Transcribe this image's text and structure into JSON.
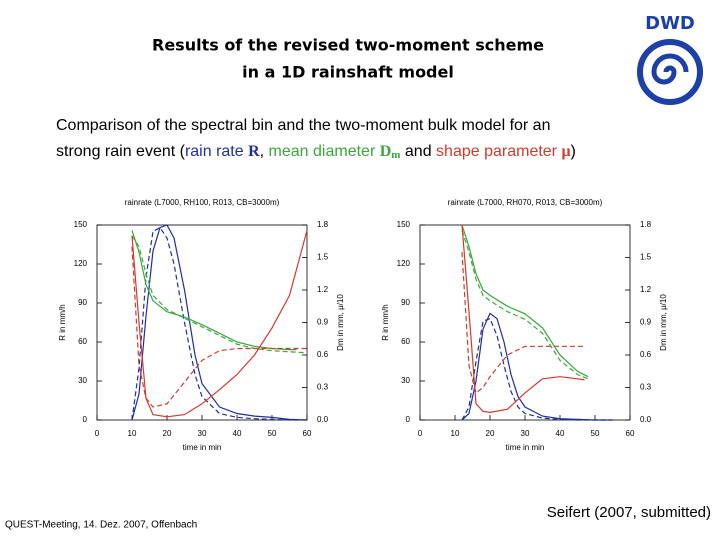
{
  "title_lines": [
    "Results of the revised two-moment scheme",
    "in a 1D rainshaft model"
  ],
  "logo_text": "DWD",
  "description": {
    "line1": "Comparison of the spectral bin and the two-moment bulk model for an",
    "parts": [
      "strong rain event (",
      "rain rate ",
      "R",
      ", ",
      "mean diameter ",
      "D",
      "m",
      " and ",
      "shape parameter ",
      "μ",
      ")"
    ]
  },
  "footer": "QUEST-Meeting, 14. Dez. 2007, Offenbach",
  "credit": "Seifert (2007, submitted)",
  "chart_data": [
    {
      "type": "line",
      "title": "rainrate (L7000, RH100, R013, CB=3000m)",
      "x_label": "time in min",
      "y_label": "R in mm/h",
      "y2_label": "Dm in mm, μ/10",
      "xlim": [
        0,
        60
      ],
      "xticks": [
        0,
        10,
        20,
        30,
        40,
        50,
        60
      ],
      "ylim": [
        0,
        150
      ],
      "yticks": [
        0,
        30,
        60,
        90,
        120,
        150
      ],
      "y2lim": [
        0,
        1.8
      ],
      "y2ticks": [
        {
          "value": 0,
          "label": "0.0"
        },
        0.3,
        0.6,
        0.9,
        1.2,
        1.5,
        1.8
      ],
      "series": [
        {
          "color": "#1f2fa0",
          "dashed": false,
          "x": [
            10,
            12,
            14,
            16,
            18,
            20,
            22,
            25,
            28,
            30,
            35,
            40,
            45,
            50,
            55,
            60
          ],
          "values": [
            0,
            20,
            80,
            130,
            148,
            150,
            140,
            100,
            50,
            28,
            10,
            5,
            3,
            2,
            0.5,
            0
          ]
        },
        {
          "color": "#1f2fa0",
          "dashed": true,
          "x": [
            10,
            12,
            14,
            16,
            18,
            20,
            22,
            25,
            28,
            30,
            35,
            40,
            45,
            50,
            55,
            60
          ],
          "values": [
            0,
            40,
            110,
            145,
            148,
            140,
            120,
            75,
            35,
            18,
            5,
            2,
            1,
            0.5,
            0,
            0
          ]
        },
        {
          "color": "#3aa83a",
          "dashed": false,
          "axis": "y2",
          "x": [
            10,
            12,
            14,
            16,
            20,
            25,
            30,
            35,
            40,
            45,
            50,
            55,
            57
          ],
          "values": [
            1.75,
            1.55,
            1.25,
            1.1,
            1.0,
            0.95,
            0.88,
            0.8,
            0.72,
            0.68,
            0.66,
            0.65,
            0.65
          ]
        },
        {
          "color": "#3aa83a",
          "dashed": true,
          "axis": "y2",
          "x": [
            10,
            12,
            14,
            16,
            20,
            25,
            30,
            35,
            40,
            45,
            50,
            55,
            60
          ],
          "values": [
            1.7,
            1.6,
            1.35,
            1.15,
            1.02,
            0.94,
            0.86,
            0.78,
            0.7,
            0.66,
            0.64,
            0.63,
            0.62
          ]
        },
        {
          "color": "#d43a2a",
          "dashed": false,
          "axis": "y2",
          "x": [
            10,
            12,
            14,
            16,
            20,
            25,
            30,
            35,
            40,
            45,
            50,
            55,
            60
          ],
          "values": [
            1.7,
            0.9,
            0.2,
            0.05,
            0.03,
            0.05,
            0.15,
            0.28,
            0.42,
            0.6,
            0.85,
            1.15,
            1.75
          ]
        },
        {
          "color": "#d43a2a",
          "dashed": true,
          "axis": "y2",
          "x": [
            10,
            12,
            14,
            16,
            20,
            25,
            30,
            35,
            40,
            45,
            50,
            55,
            60
          ],
          "values": [
            1.6,
            0.5,
            0.2,
            0.12,
            0.15,
            0.35,
            0.55,
            0.64,
            0.66,
            0.66,
            0.66,
            0.66,
            0.66
          ]
        }
      ]
    },
    {
      "type": "line",
      "title": "rainrate (L7000, RH070, R013, CB=3000m)",
      "x_label": "time in min",
      "y_label": "R in mm/h",
      "y2_label": "Dm in mm, μ/10",
      "xlim": [
        0,
        60
      ],
      "xticks": [
        0,
        10,
        20,
        30,
        40,
        50,
        60
      ],
      "ylim": [
        0,
        150
      ],
      "yticks": [
        0,
        30,
        60,
        90,
        120,
        150
      ],
      "y2lim": [
        0,
        1.8
      ],
      "y2ticks": [
        {
          "value": 0,
          "label": "0.0"
        },
        0.3,
        0.6,
        0.9,
        1.2,
        1.5,
        1.8
      ],
      "series": [
        {
          "color": "#1f2fa0",
          "dashed": false,
          "x": [
            12,
            14,
            16,
            18,
            20,
            22,
            24,
            26,
            28,
            30,
            35,
            40,
            45,
            50,
            55
          ],
          "values": [
            0,
            5,
            30,
            70,
            82,
            78,
            60,
            35,
            18,
            10,
            3,
            1,
            0.5,
            0,
            0
          ]
        },
        {
          "color": "#1f2fa0",
          "dashed": true,
          "x": [
            12,
            14,
            16,
            18,
            20,
            22,
            24,
            26,
            28,
            30,
            35,
            40,
            45,
            50,
            55
          ],
          "values": [
            0,
            10,
            45,
            76,
            78,
            65,
            42,
            22,
            10,
            5,
            1.5,
            0.5,
            0,
            0,
            0
          ]
        },
        {
          "color": "#3aa83a",
          "dashed": false,
          "axis": "y2",
          "x": [
            12,
            14,
            16,
            18,
            20,
            25,
            30,
            35,
            40,
            45,
            48
          ],
          "values": [
            1.8,
            1.6,
            1.35,
            1.2,
            1.15,
            1.05,
            0.98,
            0.85,
            0.6,
            0.45,
            0.4
          ]
        },
        {
          "color": "#3aa83a",
          "dashed": true,
          "axis": "y2",
          "x": [
            12,
            14,
            16,
            18,
            20,
            25,
            30,
            35,
            40,
            45,
            48
          ],
          "values": [
            1.75,
            1.55,
            1.3,
            1.15,
            1.1,
            1.0,
            0.93,
            0.8,
            0.55,
            0.42,
            0.38
          ]
        },
        {
          "color": "#d43a2a",
          "dashed": false,
          "axis": "y2",
          "x": [
            12,
            14,
            16,
            18,
            20,
            25,
            30,
            35,
            40,
            45,
            47
          ],
          "values": [
            1.8,
            1.0,
            0.15,
            0.08,
            0.07,
            0.1,
            0.25,
            0.38,
            0.4,
            0.38,
            0.37
          ]
        },
        {
          "color": "#d43a2a",
          "dashed": true,
          "axis": "y2",
          "x": [
            12,
            14,
            16,
            18,
            20,
            25,
            30,
            35,
            40,
            45,
            47
          ],
          "values": [
            1.55,
            0.5,
            0.25,
            0.3,
            0.4,
            0.6,
            0.68,
            0.68,
            0.68,
            0.68,
            0.68
          ]
        }
      ]
    }
  ]
}
